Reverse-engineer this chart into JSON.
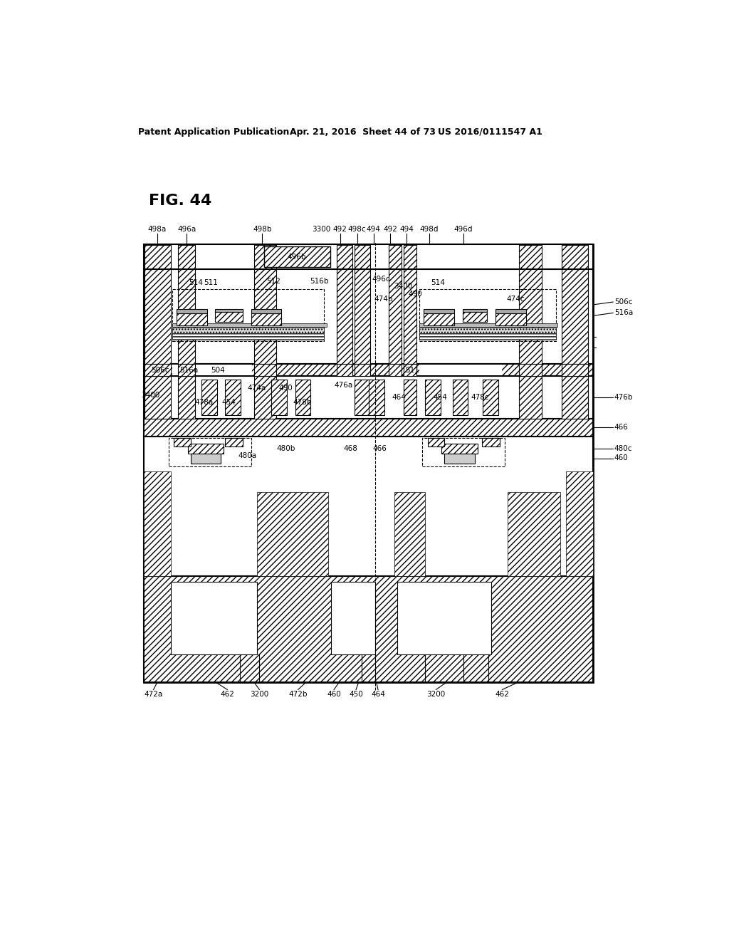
{
  "header_left": "Patent Application Publication",
  "header_center": "Apr. 21, 2016  Sheet 44 of 73",
  "header_right": "US 2016/0111547 A1",
  "background": "#ffffff",
  "fig_label": "FIG. 44"
}
